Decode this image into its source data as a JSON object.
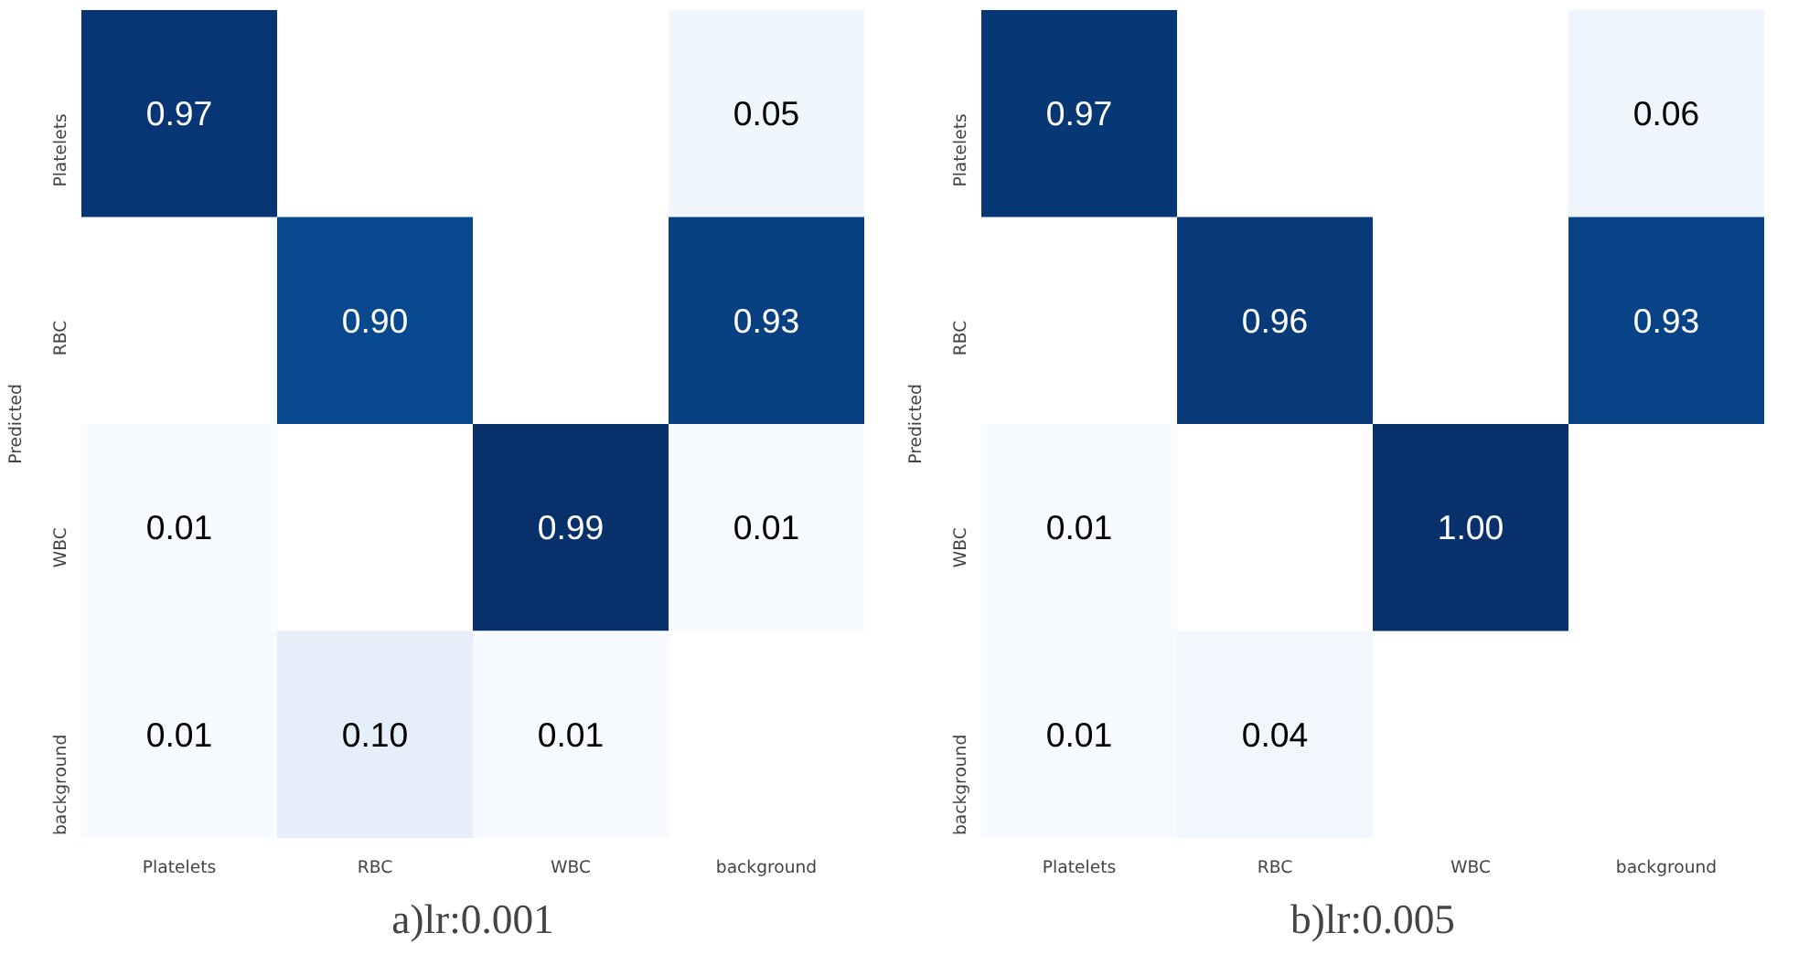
{
  "chart_data": [
    {
      "type": "heatmap",
      "title": "a)lr:0.001",
      "ylabel": "Predicted",
      "categories": [
        "Platelets",
        "RBC",
        "WBC",
        "background"
      ],
      "y_categories": [
        "Platelets",
        "RBC",
        "WBC",
        "background"
      ],
      "cells": [
        [
          0.97,
          null,
          null,
          0.05
        ],
        [
          null,
          0.9,
          null,
          0.93
        ],
        [
          0.01,
          null,
          0.99,
          0.01
        ],
        [
          0.01,
          0.1,
          0.01,
          null
        ]
      ],
      "cell_labels": [
        [
          "0.97",
          null,
          null,
          "0.05"
        ],
        [
          null,
          "0.90",
          null,
          "0.93"
        ],
        [
          "0.01",
          null,
          "0.99",
          "0.01"
        ],
        [
          "0.01",
          "0.10",
          "0.01",
          null
        ]
      ],
      "grid": false
    },
    {
      "type": "heatmap",
      "title": "b)lr:0.005",
      "ylabel": "Predicted",
      "categories": [
        "Platelets",
        "RBC",
        "WBC",
        "background"
      ],
      "y_categories": [
        "Platelets",
        "RBC",
        "WBC",
        "background"
      ],
      "cells": [
        [
          0.97,
          null,
          null,
          0.06
        ],
        [
          null,
          0.96,
          null,
          0.93
        ],
        [
          0.01,
          null,
          1.0,
          null
        ],
        [
          0.01,
          0.04,
          null,
          null
        ]
      ],
      "cell_labels": [
        [
          "0.97",
          null,
          null,
          "0.06"
        ],
        [
          null,
          "0.96",
          null,
          "0.93"
        ],
        [
          "0.01",
          null,
          "1.00",
          null
        ],
        [
          "0.01",
          "0.04",
          null,
          null
        ]
      ],
      "grid": false
    }
  ]
}
